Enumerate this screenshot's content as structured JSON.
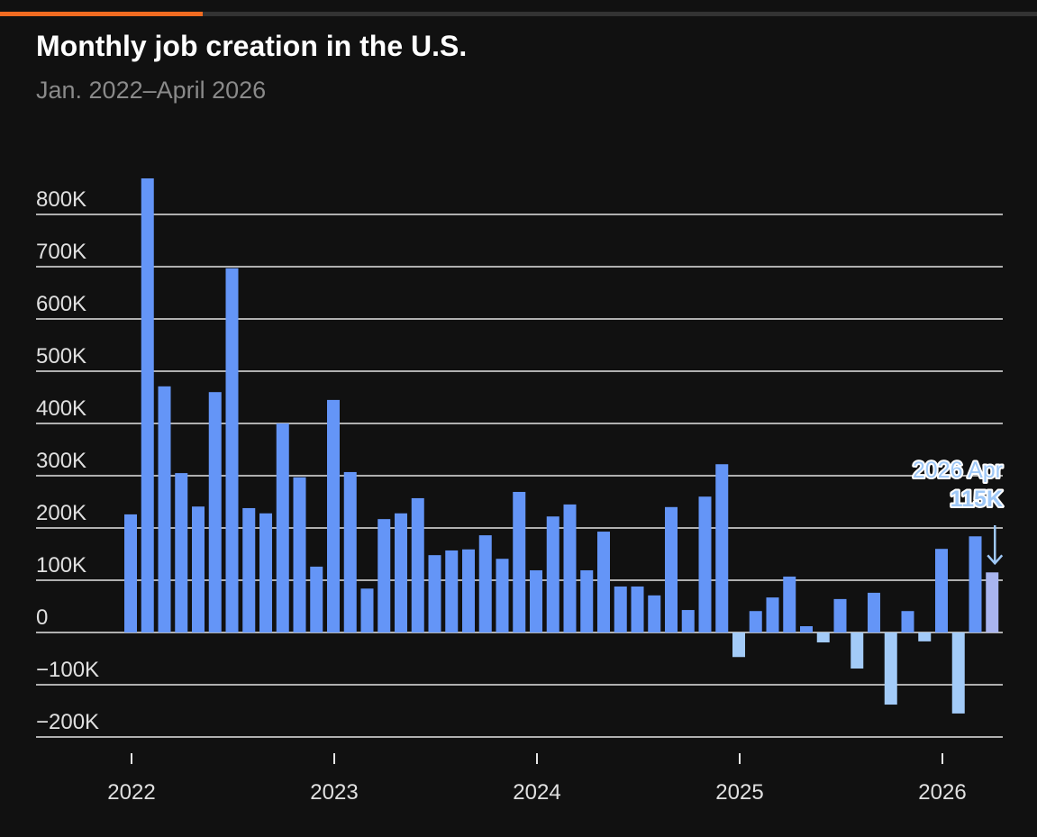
{
  "chart_data": {
    "type": "bar",
    "title": "Monthly job creation in the U.S.",
    "subtitle": "Jan. 2022–April 2026",
    "categories": [
      "2022",
      null,
      null,
      null,
      null,
      null,
      null,
      null,
      null,
      null,
      null,
      null,
      "2023",
      null,
      null,
      null,
      null,
      null,
      null,
      null,
      null,
      null,
      null,
      null,
      "2024",
      null,
      null,
      null,
      null,
      null,
      null,
      null,
      null,
      null,
      null,
      null,
      "2025",
      null,
      null,
      null,
      null,
      null,
      null,
      null,
      null,
      null,
      null,
      null,
      "2026",
      null,
      null,
      null
    ],
    "values": [
      226000,
      869000,
      471000,
      305000,
      241000,
      460000,
      697000,
      238000,
      228000,
      400000,
      297000,
      126000,
      445000,
      307000,
      84000,
      217000,
      228000,
      257000,
      148000,
      157000,
      159000,
      186000,
      141000,
      269000,
      119000,
      222000,
      245000,
      119000,
      193000,
      88000,
      88000,
      71000,
      240000,
      43000,
      260000,
      322000,
      -47000,
      41000,
      67000,
      107000,
      12000,
      -19000,
      64000,
      -69000,
      76000,
      -138000,
      41000,
      -17000,
      160000,
      -155000,
      184000,
      115000
    ],
    "color": "#6495f7",
    "negative_color": "#a3cbf8",
    "ylim": [
      -200000,
      900000
    ],
    "yticks": [
      {
        "value": -200000,
        "label": "−200K"
      },
      {
        "value": -100000,
        "label": "−100K"
      },
      0,
      {
        "value": 100000,
        "label": "100K"
      },
      {
        "value": 200000,
        "label": "200K"
      },
      {
        "value": 300000,
        "label": "300K"
      },
      {
        "value": 400000,
        "label": "400K"
      },
      {
        "value": 500000,
        "label": "500K"
      },
      {
        "value": 600000,
        "label": "600K"
      },
      {
        "value": 700000,
        "label": "700K"
      },
      {
        "value": 800000,
        "label": "800K"
      }
    ],
    "grid": true,
    "annotation": {
      "label": "2026 Apr",
      "value_label": "115K",
      "color": "#a9b5f0",
      "text_color": "#9fc8f7"
    }
  }
}
